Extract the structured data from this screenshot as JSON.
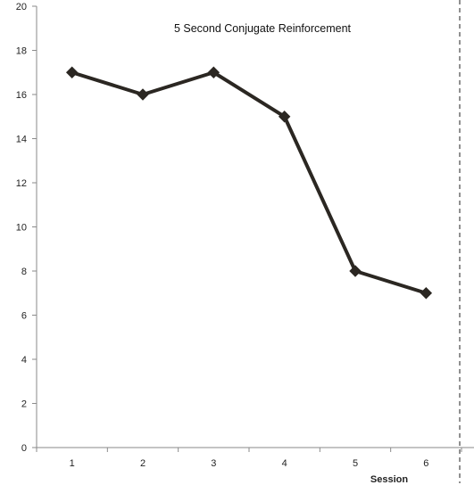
{
  "chart_data": {
    "type": "line",
    "title": "5 Second Conjugate Reinforcement",
    "xlabel": "Session",
    "ylabel": "",
    "x": [
      1,
      2,
      3,
      4,
      5,
      6
    ],
    "series": [
      {
        "values": [
          17,
          16,
          17,
          15,
          8,
          7
        ]
      }
    ],
    "ylim": [
      0,
      20
    ],
    "yticks": [
      0,
      2,
      4,
      6,
      8,
      10,
      12,
      14,
      16,
      18,
      20
    ],
    "grid": false,
    "legend": "none",
    "marker": "diamond",
    "colors": {
      "line": "#2b2722",
      "axis": "#8a8a8a",
      "divider": "#222222"
    }
  }
}
